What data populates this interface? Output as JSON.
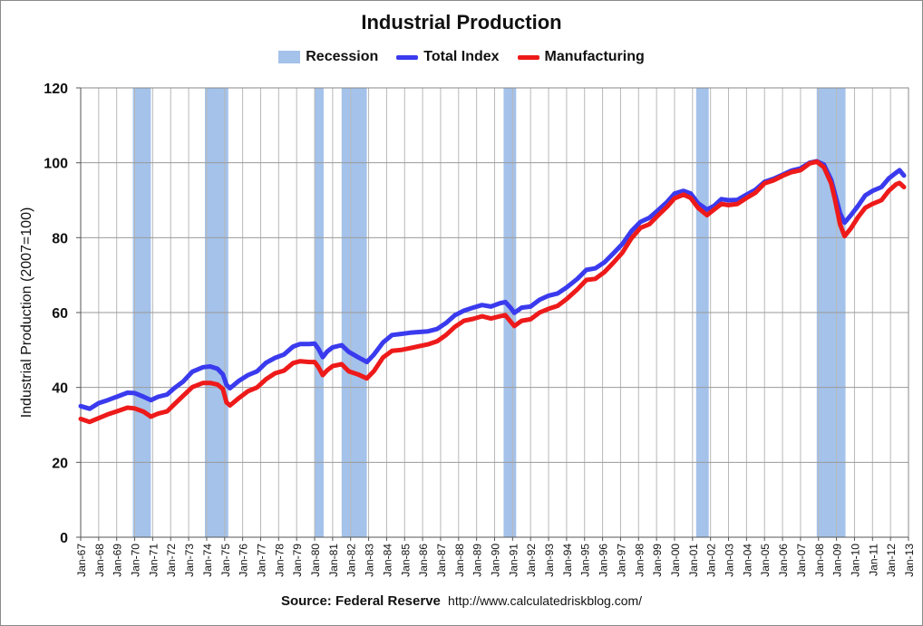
{
  "chart_data": {
    "type": "line",
    "title": "Industrial Production",
    "ylabel": "Industrial Production (2007=100)",
    "xlabel": "",
    "ylim": [
      0,
      120
    ],
    "yticks": [
      0,
      20,
      40,
      60,
      80,
      100,
      120
    ],
    "xlim": [
      1967.0,
      2013.0
    ],
    "xtick_labels": [
      "Jan-67",
      "Jan-68",
      "Jan-69",
      "Jan-70",
      "Jan-71",
      "Jan-72",
      "Jan-73",
      "Jan-74",
      "Jan-75",
      "Jan-76",
      "Jan-77",
      "Jan-78",
      "Jan-79",
      "Jan-80",
      "Jan-81",
      "Jan-82",
      "Jan-83",
      "Jan-84",
      "Jan-85",
      "Jan-86",
      "Jan-87",
      "Jan-88",
      "Jan-89",
      "Jan-90",
      "Jan-91",
      "Jan-92",
      "Jan-93",
      "Jan-94",
      "Jan-95",
      "Jan-96",
      "Jan-97",
      "Jan-98",
      "Jan-99",
      "Jan-00",
      "Jan-01",
      "Jan-02",
      "Jan-03",
      "Jan-04",
      "Jan-05",
      "Jan-06",
      "Jan-07",
      "Jan-08",
      "Jan-09",
      "Jan-10",
      "Jan-11",
      "Jan-12",
      "Jan-13"
    ],
    "grid": true,
    "legend_position": "top-center",
    "legend": [
      "Recession",
      "Total Index",
      "Manufacturing"
    ],
    "recessions": [
      {
        "start": 1969.9,
        "end": 1970.9
      },
      {
        "start": 1973.9,
        "end": 1975.2
      },
      {
        "start": 1980.0,
        "end": 1980.5
      },
      {
        "start": 1981.5,
        "end": 1982.9
      },
      {
        "start": 1990.5,
        "end": 1991.2
      },
      {
        "start": 2001.2,
        "end": 2001.9
      },
      {
        "start": 2007.9,
        "end": 2009.5
      }
    ],
    "series": [
      {
        "name": "Total Index",
        "color": "#3a3aee",
        "points": [
          [
            1967.0,
            35
          ],
          [
            1967.5,
            34.3
          ],
          [
            1968.0,
            35.8
          ],
          [
            1968.5,
            36.6
          ],
          [
            1969.0,
            37.5
          ],
          [
            1969.6,
            38.6
          ],
          [
            1970.0,
            38.5
          ],
          [
            1970.5,
            37.5
          ],
          [
            1970.9,
            36.6
          ],
          [
            1971.3,
            37.5
          ],
          [
            1971.8,
            38.1
          ],
          [
            1972.2,
            39.8
          ],
          [
            1972.7,
            41.6
          ],
          [
            1973.2,
            44.2
          ],
          [
            1973.8,
            45.4
          ],
          [
            1974.2,
            45.6
          ],
          [
            1974.6,
            45.0
          ],
          [
            1974.9,
            43.5
          ],
          [
            1975.1,
            40.7
          ],
          [
            1975.3,
            39.8
          ],
          [
            1975.8,
            41.8
          ],
          [
            1976.3,
            43.3
          ],
          [
            1976.8,
            44.3
          ],
          [
            1977.3,
            46.6
          ],
          [
            1977.8,
            47.9
          ],
          [
            1978.3,
            48.8
          ],
          [
            1978.8,
            50.9
          ],
          [
            1979.2,
            51.6
          ],
          [
            1979.7,
            51.6
          ],
          [
            1980.0,
            51.7
          ],
          [
            1980.2,
            50.4
          ],
          [
            1980.45,
            48.1
          ],
          [
            1980.7,
            49.6
          ],
          [
            1981.0,
            50.7
          ],
          [
            1981.5,
            51.3
          ],
          [
            1981.9,
            49.5
          ],
          [
            1982.4,
            48.1
          ],
          [
            1982.9,
            46.8
          ],
          [
            1983.3,
            48.8
          ],
          [
            1983.8,
            52.0
          ],
          [
            1984.3,
            54.0
          ],
          [
            1984.8,
            54.3
          ],
          [
            1985.3,
            54.6
          ],
          [
            1985.8,
            54.8
          ],
          [
            1986.3,
            55.0
          ],
          [
            1986.8,
            55.6
          ],
          [
            1987.3,
            57.2
          ],
          [
            1987.8,
            59.3
          ],
          [
            1988.3,
            60.5
          ],
          [
            1988.8,
            61.3
          ],
          [
            1989.3,
            62.0
          ],
          [
            1989.8,
            61.6
          ],
          [
            1990.3,
            62.5
          ],
          [
            1990.6,
            62.8
          ],
          [
            1990.9,
            61.2
          ],
          [
            1991.1,
            59.9
          ],
          [
            1991.5,
            61.3
          ],
          [
            1992.0,
            61.6
          ],
          [
            1992.5,
            63.4
          ],
          [
            1993.0,
            64.5
          ],
          [
            1993.5,
            65.1
          ],
          [
            1994.0,
            66.7
          ],
          [
            1994.6,
            69.0
          ],
          [
            1995.1,
            71.4
          ],
          [
            1995.6,
            71.8
          ],
          [
            1996.1,
            73.4
          ],
          [
            1996.6,
            75.8
          ],
          [
            1997.1,
            78.3
          ],
          [
            1997.6,
            81.7
          ],
          [
            1998.1,
            84.2
          ],
          [
            1998.6,
            85.3
          ],
          [
            1999.1,
            87.4
          ],
          [
            1999.6,
            89.6
          ],
          [
            2000.0,
            91.8
          ],
          [
            2000.5,
            92.5
          ],
          [
            2000.9,
            91.8
          ],
          [
            2001.3,
            89.2
          ],
          [
            2001.8,
            87.5
          ],
          [
            2002.2,
            88.5
          ],
          [
            2002.6,
            90.3
          ],
          [
            2003.0,
            90.0
          ],
          [
            2003.5,
            90.1
          ],
          [
            2004.0,
            91.5
          ],
          [
            2004.5,
            92.8
          ],
          [
            2005.0,
            94.9
          ],
          [
            2005.5,
            95.7
          ],
          [
            2006.0,
            96.8
          ],
          [
            2006.5,
            97.9
          ],
          [
            2007.0,
            98.5
          ],
          [
            2007.5,
            100.0
          ],
          [
            2007.9,
            100.4
          ],
          [
            2008.3,
            99.5
          ],
          [
            2008.7,
            95.5
          ],
          [
            2008.9,
            92.0
          ],
          [
            2009.2,
            86.5
          ],
          [
            2009.45,
            84.0
          ],
          [
            2009.8,
            86.0
          ],
          [
            2010.2,
            88.5
          ],
          [
            2010.6,
            91.3
          ],
          [
            2011.0,
            92.5
          ],
          [
            2011.5,
            93.5
          ],
          [
            2011.9,
            95.8
          ],
          [
            2012.3,
            97.3
          ],
          [
            2012.5,
            98.0
          ],
          [
            2012.75,
            96.6
          ]
        ]
      },
      {
        "name": "Manufacturing",
        "color": "#ee1a1a",
        "points": [
          [
            1967.0,
            31.6
          ],
          [
            1967.5,
            30.8
          ],
          [
            1968.0,
            31.8
          ],
          [
            1968.5,
            32.8
          ],
          [
            1969.0,
            33.6
          ],
          [
            1969.6,
            34.6
          ],
          [
            1970.0,
            34.4
          ],
          [
            1970.5,
            33.5
          ],
          [
            1970.9,
            32.2
          ],
          [
            1971.3,
            33.0
          ],
          [
            1971.8,
            33.6
          ],
          [
            1972.2,
            35.5
          ],
          [
            1972.7,
            37.8
          ],
          [
            1973.2,
            40.1
          ],
          [
            1973.8,
            41.2
          ],
          [
            1974.2,
            41.2
          ],
          [
            1974.6,
            40.8
          ],
          [
            1974.9,
            39.6
          ],
          [
            1975.1,
            36.0
          ],
          [
            1975.3,
            35.2
          ],
          [
            1975.8,
            37.2
          ],
          [
            1976.3,
            39.0
          ],
          [
            1976.8,
            40.0
          ],
          [
            1977.3,
            42.2
          ],
          [
            1977.8,
            43.8
          ],
          [
            1978.3,
            44.5
          ],
          [
            1978.8,
            46.5
          ],
          [
            1979.2,
            47.0
          ],
          [
            1979.7,
            46.8
          ],
          [
            1980.0,
            46.8
          ],
          [
            1980.2,
            45.5
          ],
          [
            1980.45,
            43.3
          ],
          [
            1980.7,
            44.6
          ],
          [
            1981.0,
            45.7
          ],
          [
            1981.5,
            46.2
          ],
          [
            1981.9,
            44.3
          ],
          [
            1982.4,
            43.5
          ],
          [
            1982.9,
            42.4
          ],
          [
            1983.3,
            44.4
          ],
          [
            1983.8,
            48.0
          ],
          [
            1984.3,
            49.8
          ],
          [
            1984.8,
            50.0
          ],
          [
            1985.3,
            50.5
          ],
          [
            1985.8,
            51.0
          ],
          [
            1986.3,
            51.5
          ],
          [
            1986.8,
            52.3
          ],
          [
            1987.3,
            54.0
          ],
          [
            1987.8,
            56.2
          ],
          [
            1988.3,
            57.8
          ],
          [
            1988.8,
            58.3
          ],
          [
            1989.3,
            59.0
          ],
          [
            1989.8,
            58.4
          ],
          [
            1990.3,
            59.0
          ],
          [
            1990.6,
            59.3
          ],
          [
            1990.9,
            57.5
          ],
          [
            1991.1,
            56.4
          ],
          [
            1991.5,
            57.8
          ],
          [
            1992.0,
            58.2
          ],
          [
            1992.5,
            60.0
          ],
          [
            1993.0,
            61.0
          ],
          [
            1993.5,
            61.8
          ],
          [
            1994.0,
            63.6
          ],
          [
            1994.6,
            66.2
          ],
          [
            1995.1,
            68.7
          ],
          [
            1995.6,
            69.0
          ],
          [
            1996.1,
            70.8
          ],
          [
            1996.6,
            73.3
          ],
          [
            1997.1,
            76.0
          ],
          [
            1997.6,
            79.8
          ],
          [
            1998.1,
            82.6
          ],
          [
            1998.6,
            83.6
          ],
          [
            1999.1,
            86.0
          ],
          [
            1999.6,
            88.3
          ],
          [
            2000.0,
            90.5
          ],
          [
            2000.5,
            91.5
          ],
          [
            2000.9,
            90.6
          ],
          [
            2001.3,
            88.0
          ],
          [
            2001.8,
            86.0
          ],
          [
            2002.2,
            87.5
          ],
          [
            2002.6,
            89.0
          ],
          [
            2003.0,
            88.7
          ],
          [
            2003.5,
            89.0
          ],
          [
            2004.0,
            90.6
          ],
          [
            2004.5,
            92.0
          ],
          [
            2005.0,
            94.5
          ],
          [
            2005.5,
            95.3
          ],
          [
            2006.0,
            96.5
          ],
          [
            2006.5,
            97.5
          ],
          [
            2007.0,
            98.0
          ],
          [
            2007.5,
            99.8
          ],
          [
            2007.9,
            100.3
          ],
          [
            2008.3,
            98.8
          ],
          [
            2008.7,
            94.5
          ],
          [
            2008.9,
            90.5
          ],
          [
            2009.2,
            83.5
          ],
          [
            2009.45,
            80.4
          ],
          [
            2009.8,
            82.5
          ],
          [
            2010.2,
            85.5
          ],
          [
            2010.6,
            88.0
          ],
          [
            2011.0,
            89.0
          ],
          [
            2011.5,
            90.0
          ],
          [
            2011.9,
            92.5
          ],
          [
            2012.3,
            94.2
          ],
          [
            2012.5,
            94.6
          ],
          [
            2012.75,
            93.5
          ]
        ]
      }
    ]
  },
  "colors": {
    "recession": "#a4c2ea",
    "grid": "#b8b8b8",
    "total": "#3a3aee",
    "manufacturing": "#ee1a1a"
  },
  "source": {
    "label": "Source: Federal Reserve",
    "url": "http://www.calculatedriskblog.com/"
  }
}
